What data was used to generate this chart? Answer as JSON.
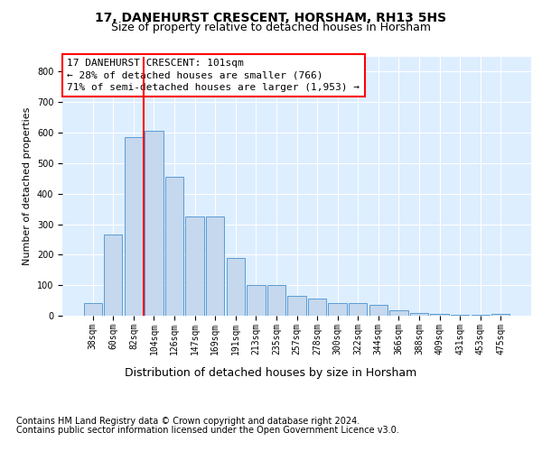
{
  "title": "17, DANEHURST CRESCENT, HORSHAM, RH13 5HS",
  "subtitle": "Size of property relative to detached houses in Horsham",
  "xlabel": "Distribution of detached houses by size in Horsham",
  "ylabel": "Number of detached properties",
  "categories": [
    "38sqm",
    "60sqm",
    "82sqm",
    "104sqm",
    "126sqm",
    "147sqm",
    "169sqm",
    "191sqm",
    "213sqm",
    "235sqm",
    "257sqm",
    "278sqm",
    "300sqm",
    "322sqm",
    "344sqm",
    "366sqm",
    "388sqm",
    "409sqm",
    "431sqm",
    "453sqm",
    "475sqm"
  ],
  "values": [
    40,
    265,
    585,
    605,
    455,
    325,
    325,
    190,
    100,
    100,
    65,
    55,
    40,
    40,
    35,
    18,
    8,
    5,
    2,
    2,
    5
  ],
  "bar_color": "#c5d8ed",
  "bar_edge_color": "#5b9bd5",
  "vline_color": "red",
  "vline_x_index": 2.5,
  "annotation_text": "17 DANEHURST CRESCENT: 101sqm\n← 28% of detached houses are smaller (766)\n71% of semi-detached houses are larger (1,953) →",
  "annotation_box_color": "white",
  "annotation_box_edge_color": "red",
  "ylim": [
    0,
    850
  ],
  "yticks": [
    0,
    100,
    200,
    300,
    400,
    500,
    600,
    700,
    800
  ],
  "footer_line1": "Contains HM Land Registry data © Crown copyright and database right 2024.",
  "footer_line2": "Contains public sector information licensed under the Open Government Licence v3.0.",
  "title_fontsize": 10,
  "subtitle_fontsize": 9,
  "tick_label_fontsize": 7,
  "ylabel_fontsize": 8,
  "xlabel_fontsize": 9,
  "footer_fontsize": 7,
  "annotation_fontsize": 8,
  "plot_bg_color": "#ddeeff"
}
